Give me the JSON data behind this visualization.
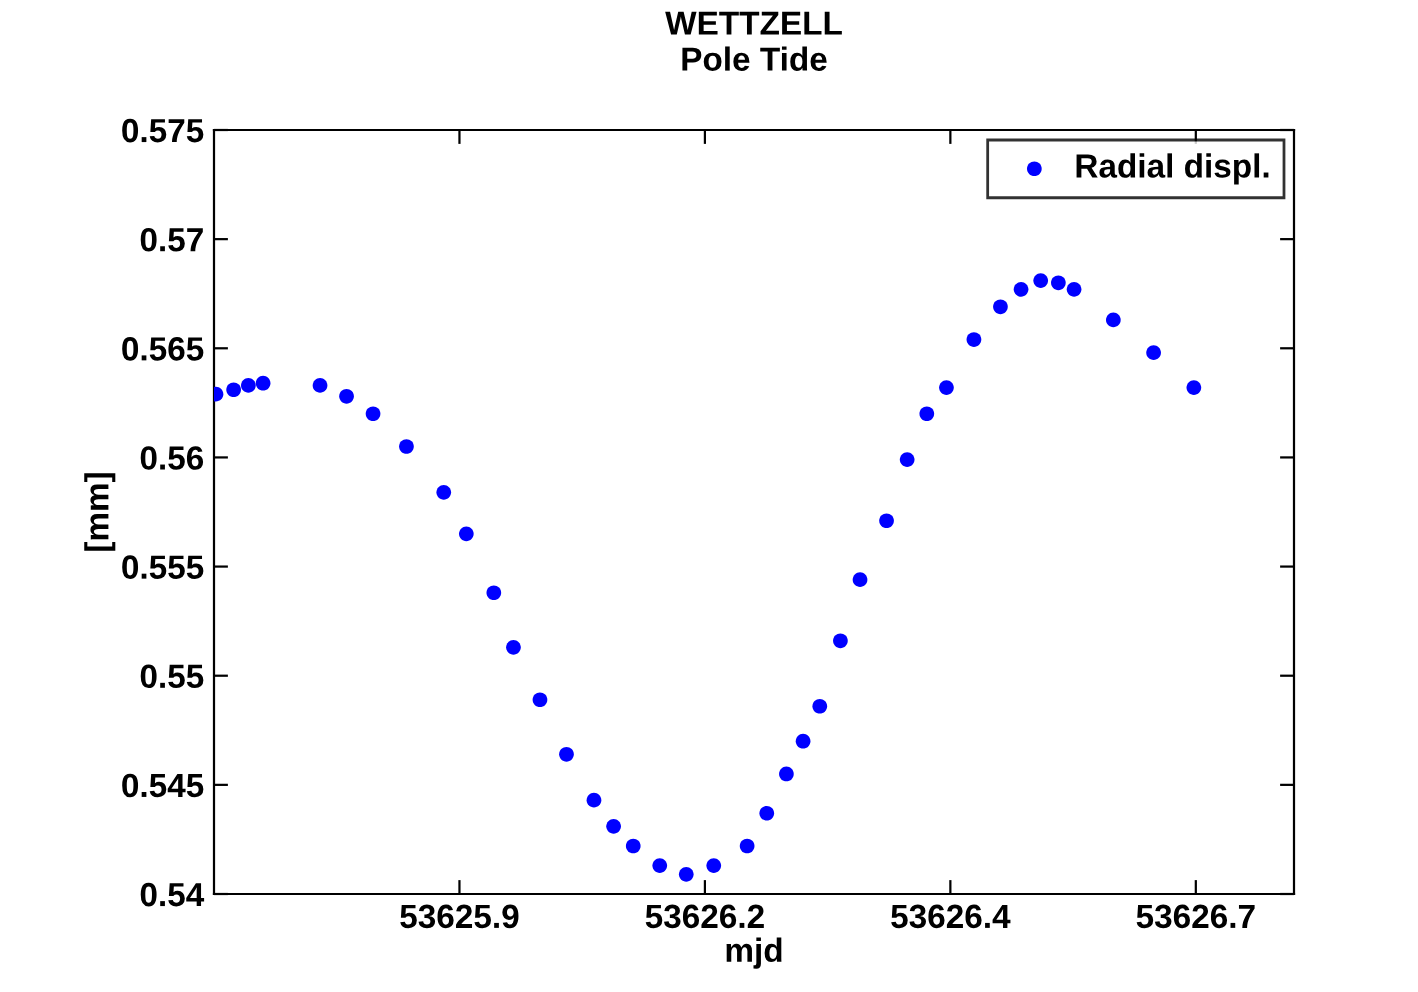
{
  "chart_data": {
    "type": "scatter",
    "title": "WETTZELL",
    "subtitle": "Pole Tide",
    "xlabel": "mjd",
    "ylabel": "[mm]",
    "xlim": [
      53625.65,
      53626.75
    ],
    "xticks": [
      53625.9,
      {
        "value": 53626.15,
        "label": "53626.2"
      },
      53626.4,
      {
        "value": 53626.65,
        "label": "53626.7"
      }
    ],
    "ylim": [
      0.54,
      0.575
    ],
    "yticks": [
      0.54,
      0.545,
      0.55,
      0.555,
      0.56,
      0.565,
      0.57,
      0.575
    ],
    "grid": false,
    "legend": "top right",
    "marker": "circle",
    "series": [
      {
        "name": "Radial displ.",
        "color": "#0000ff",
        "x": [
          53625.652,
          53625.67,
          53625.685,
          53625.7,
          53625.758,
          53625.785,
          53625.812,
          53625.846,
          53625.884,
          53625.907,
          53625.935,
          53625.955,
          53625.982,
          53626.009,
          53626.037,
          53626.057,
          53626.077,
          53626.104,
          53626.131,
          53626.159,
          53626.193,
          53626.213,
          53626.233,
          53626.25,
          53626.267,
          53626.288,
          53626.308,
          53626.335,
          53626.356,
          53626.376,
          53626.396,
          53626.424,
          53626.451,
          53626.472,
          53626.492,
          53626.51,
          53626.526,
          53626.566,
          53626.607,
          53626.648
        ],
        "values": [
          0.5629,
          0.5631,
          0.5633,
          0.5634,
          0.5633,
          0.5628,
          0.562,
          0.5605,
          0.5584,
          0.5565,
          0.5538,
          0.5513,
          0.5489,
          0.5464,
          0.5443,
          0.5431,
          0.5422,
          0.5413,
          0.5409,
          0.5413,
          0.5422,
          0.5437,
          0.5455,
          0.547,
          0.5486,
          0.5516,
          0.5544,
          0.5571,
          0.5599,
          0.562,
          0.5632,
          0.5654,
          0.5669,
          0.5677,
          0.5681,
          0.568,
          0.5677,
          0.5663,
          0.5648,
          0.5632
        ]
      }
    ]
  }
}
